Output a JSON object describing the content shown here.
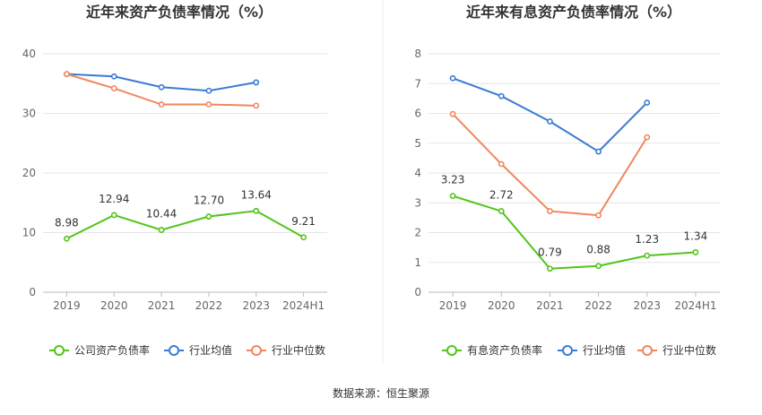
{
  "source": "数据来源：恒生聚源",
  "chart_data": [
    {
      "type": "line",
      "title": "近年来资产负债率情况（%）",
      "categories": [
        "2019",
        "2020",
        "2021",
        "2022",
        "2023",
        "2024H1"
      ],
      "ylim": [
        0,
        40
      ],
      "yticks": [
        0,
        10,
        20,
        30,
        40
      ],
      "series": [
        {
          "name": "公司资产负债率",
          "color": "#52c41a",
          "values": [
            8.98,
            12.94,
            10.44,
            12.7,
            13.64,
            9.21
          ],
          "labels": [
            "8.98",
            "12.94",
            "10.44",
            "12.70",
            "13.64",
            "9.21"
          ]
        },
        {
          "name": "行业均值",
          "color": "#3a7bd5",
          "values": [
            36.6,
            36.2,
            34.4,
            33.8,
            35.2,
            null
          ]
        },
        {
          "name": "行业中位数",
          "color": "#f0875f",
          "values": [
            36.6,
            34.2,
            31.5,
            31.5,
            31.3,
            null
          ]
        }
      ]
    },
    {
      "type": "line",
      "title": "近年来有息资产负债率情况（%）",
      "categories": [
        "2019",
        "2020",
        "2021",
        "2022",
        "2023",
        "2024H1"
      ],
      "ylim": [
        0,
        8
      ],
      "yticks": [
        0,
        1,
        2,
        3,
        4,
        5,
        6,
        7,
        8
      ],
      "series": [
        {
          "name": "有息资产负债率",
          "color": "#52c41a",
          "values": [
            3.23,
            2.72,
            0.79,
            0.88,
            1.23,
            1.34
          ],
          "labels": [
            "3.23",
            "2.72",
            "0.79",
            "0.88",
            "1.23",
            "1.34"
          ]
        },
        {
          "name": "行业均值",
          "color": "#3a7bd5",
          "values": [
            7.18,
            6.58,
            5.73,
            4.72,
            6.36,
            null
          ]
        },
        {
          "name": "行业中位数",
          "color": "#f0875f",
          "values": [
            5.98,
            4.3,
            2.72,
            2.58,
            5.2,
            null
          ]
        }
      ]
    }
  ]
}
